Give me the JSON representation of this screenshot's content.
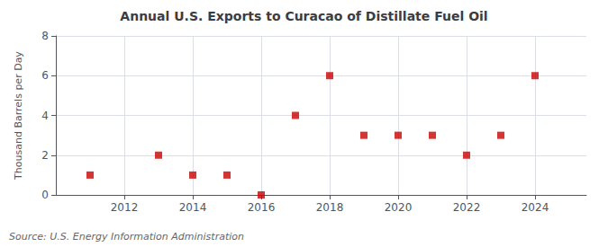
{
  "chart_data": {
    "type": "scatter",
    "title": "Annual U.S. Exports to Curacao of Distillate Fuel Oil",
    "ylabel": "Thousand Barrels per Day",
    "annotation": "Source: U.S. Energy Information Administration",
    "x": [
      2011,
      2013,
      2014,
      2015,
      2016,
      2017,
      2018,
      2019,
      2020,
      2021,
      2022,
      2023,
      2024
    ],
    "values": [
      1,
      2,
      1,
      1,
      0,
      4,
      6,
      3,
      3,
      3,
      2,
      3,
      6
    ],
    "color": "#cc0000",
    "marker": "square",
    "xlim": [
      2010.0,
      2025.5
    ],
    "xticks": [
      2012,
      2014,
      2016,
      2018,
      2020,
      2022,
      2024
    ],
    "ylim": [
      0,
      8
    ],
    "yticks": [
      0,
      2,
      4,
      6,
      8
    ],
    "grid": true
  }
}
